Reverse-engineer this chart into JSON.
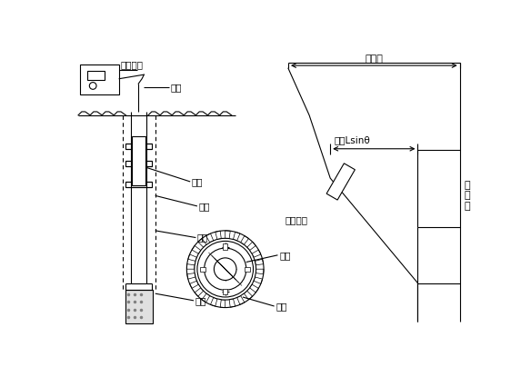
{
  "bg_color": "#ffffff",
  "line_color": "#000000",
  "fig_width": 5.84,
  "fig_height": 4.15,
  "dpi": 100,
  "labels": {
    "cedu_shebei": "测读设备",
    "dianlan": "电缆",
    "cetou": "测头",
    "zuankong": "钻孔",
    "daoguan": "导管",
    "huitian": "回填",
    "daocao": "导槽",
    "daolun": "导轮",
    "zong_yiwei": "总位移",
    "yiwei_Lsin": "位移Lsinθ",
    "cedu_jianju": "测读间距",
    "yuan_zhun_xian_1": "原",
    "yuan_zhun_xian_2": "准",
    "yuan_zhun_xian_3": "线"
  }
}
